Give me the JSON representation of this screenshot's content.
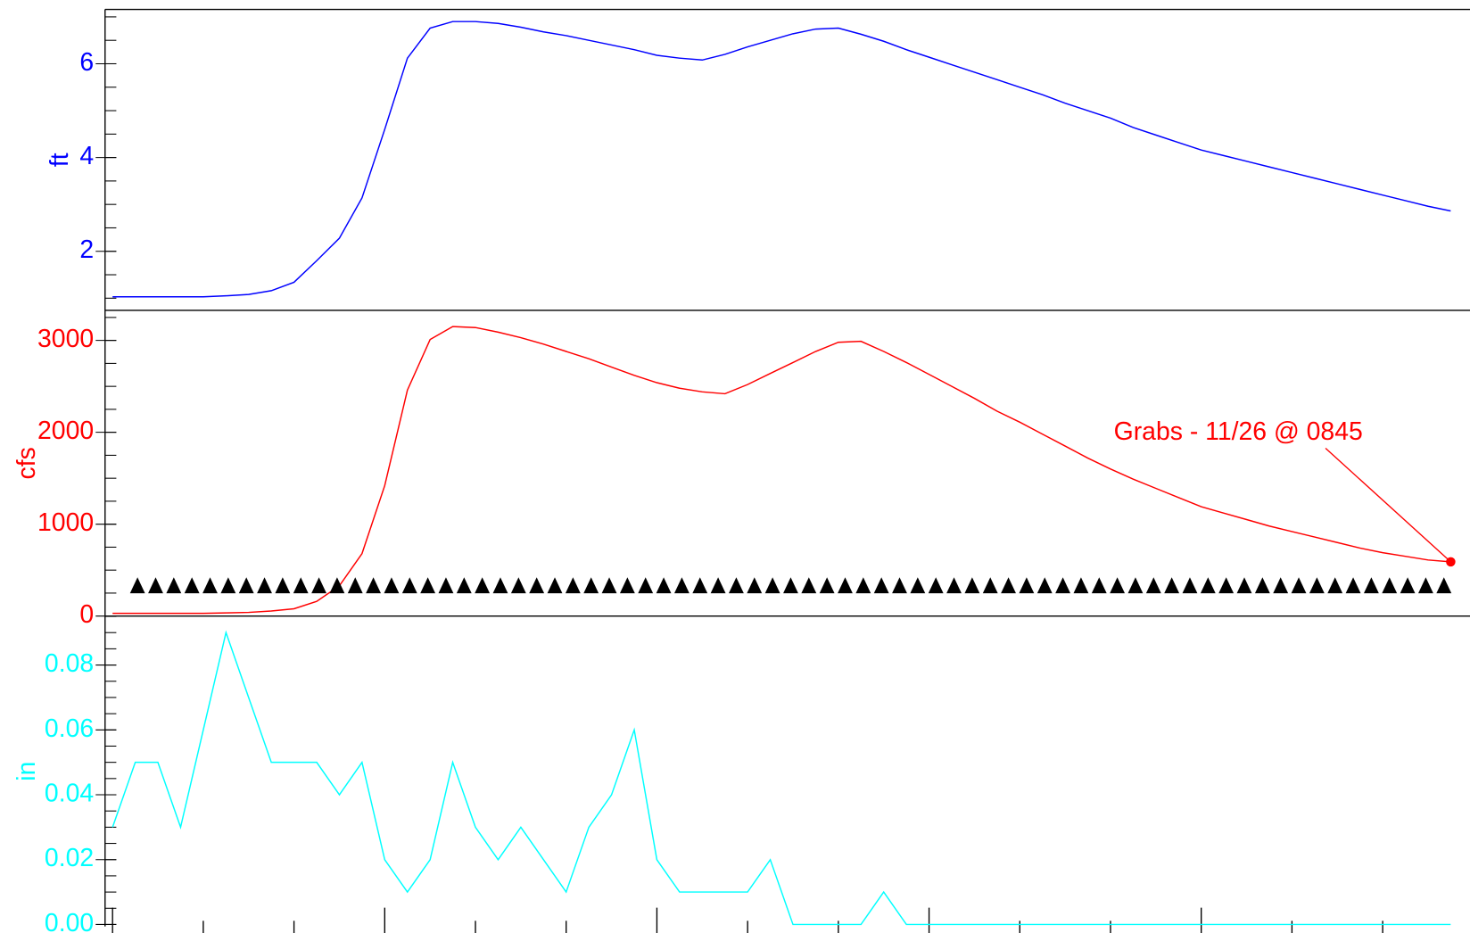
{
  "chart_data": [
    {
      "type": "line",
      "ylabel": "ft",
      "color": "#0000ff",
      "xlim": [
        -0.66,
        119.7
      ],
      "ylim": [
        0.74,
        7.16
      ],
      "yticks": [
        2,
        4,
        6
      ],
      "minor_yticks": [
        1,
        1.5,
        2,
        2.5,
        3,
        3.5,
        4,
        4.5,
        5,
        5.5,
        6,
        6.5,
        7
      ],
      "x": [
        0,
        2,
        4,
        6,
        8,
        10,
        12,
        14,
        16,
        18,
        20,
        22,
        24,
        26,
        28,
        30,
        32,
        34,
        36,
        38,
        40,
        42,
        44,
        46,
        48,
        50,
        52,
        54,
        56,
        58,
        60,
        62,
        64,
        66,
        68,
        70,
        72,
        74,
        76,
        78,
        80,
        82,
        84,
        86,
        88,
        90,
        92,
        94,
        96,
        98,
        100,
        102,
        104,
        106,
        108,
        110,
        112,
        114,
        116,
        118
      ],
      "values": [
        1.03,
        1.03,
        1.03,
        1.03,
        1.03,
        1.05,
        1.08,
        1.16,
        1.34,
        1.8,
        2.28,
        3.14,
        4.6,
        6.12,
        6.76,
        6.9,
        6.9,
        6.86,
        6.78,
        6.68,
        6.6,
        6.5,
        6.4,
        6.3,
        6.18,
        6.12,
        6.08,
        6.2,
        6.36,
        6.5,
        6.64,
        6.74,
        6.76,
        6.63,
        6.48,
        6.3,
        6.14,
        5.98,
        5.82,
        5.66,
        5.5,
        5.34,
        5.16,
        5.0,
        4.84,
        4.64,
        4.48,
        4.32,
        4.16,
        4.04,
        3.92,
        3.8,
        3.68,
        3.56,
        3.44,
        3.32,
        3.2,
        3.08,
        2.96,
        2.86
      ]
    },
    {
      "type": "line",
      "ylabel": "cfs",
      "color": "#ff0000",
      "xlim": [
        -0.66,
        119.7
      ],
      "ylim": [
        0,
        3327
      ],
      "yticks": [
        0,
        1000,
        2000,
        3000
      ],
      "minor_yticks": [
        0,
        250,
        500,
        750,
        1000,
        1250,
        1500,
        1750,
        2000,
        2250,
        2500,
        2750,
        3000,
        3250
      ],
      "x": [
        0,
        2,
        4,
        6,
        8,
        10,
        12,
        14,
        16,
        18,
        20,
        22,
        24,
        26,
        28,
        30,
        32,
        34,
        36,
        38,
        40,
        42,
        44,
        46,
        48,
        50,
        52,
        54,
        56,
        58,
        60,
        62,
        64,
        66,
        68,
        70,
        72,
        74,
        76,
        78,
        80,
        82,
        84,
        86,
        88,
        90,
        92,
        94,
        96,
        98,
        100,
        102,
        104,
        106,
        108,
        110,
        112,
        114,
        116,
        118
      ],
      "values": [
        30,
        30,
        30,
        30,
        30,
        35,
        40,
        55,
        80,
        160,
        330,
        680,
        1420,
        2460,
        3010,
        3150,
        3140,
        3090,
        3030,
        2960,
        2880,
        2800,
        2710,
        2620,
        2540,
        2480,
        2440,
        2420,
        2520,
        2640,
        2760,
        2880,
        2980,
        2990,
        2880,
        2760,
        2630,
        2500,
        2370,
        2230,
        2110,
        1980,
        1850,
        1720,
        1600,
        1490,
        1390,
        1290,
        1190,
        1120,
        1050,
        980,
        920,
        860,
        800,
        740,
        690,
        650,
        610,
        590
      ],
      "annotation": "Grabs - 11/26 @ 0845",
      "markers": {
        "color": "#000000",
        "x": [
          2.2,
          3.8,
          5.4,
          7,
          8.6,
          10.2,
          11.8,
          13.4,
          15,
          16.6,
          18.2,
          19.8,
          21.4,
          23,
          24.6,
          26.2,
          27.8,
          29.4,
          31,
          32.6,
          34.2,
          35.8,
          37.4,
          39,
          40.6,
          42.2,
          43.8,
          45.4,
          47,
          48.6,
          50.2,
          51.8,
          53.4,
          55,
          56.6,
          58.2,
          59.8,
          61.4,
          63,
          64.6,
          66.2,
          67.8,
          69.4,
          71,
          72.6,
          74.2,
          75.8,
          77.4,
          79,
          80.6,
          82.2,
          83.8,
          85.4,
          87,
          88.6,
          90.2,
          91.8,
          93.4,
          95,
          96.6,
          98.2,
          99.8,
          101.4,
          103,
          104.6,
          106.2,
          107.8,
          109.4,
          111,
          112.6,
          114.2,
          115.8,
          117.4
        ],
        "values": [
          330,
          330,
          330,
          330,
          330,
          330,
          330,
          330,
          330,
          330,
          330,
          330,
          330,
          330,
          330,
          330,
          330,
          330,
          330,
          330,
          330,
          330,
          330,
          330,
          330,
          330,
          330,
          330,
          330,
          330,
          330,
          330,
          330,
          330,
          330,
          330,
          330,
          330,
          330,
          330,
          330,
          330,
          330,
          330,
          330,
          330,
          330,
          330,
          330,
          330,
          330,
          330,
          330,
          330,
          330,
          330,
          330,
          330,
          330,
          330,
          330,
          330,
          330,
          330,
          330,
          330,
          330,
          330,
          330,
          330,
          330,
          330,
          330
        ]
      }
    },
    {
      "type": "line",
      "ylabel": "in",
      "color": "#00ffff",
      "xlim": [
        -0.66,
        119.7
      ],
      "ylim": [
        -0.0006,
        0.0951
      ],
      "yticks": [
        {
          "value": 0,
          "label": "0.00"
        },
        0.02,
        0.04,
        0.06,
        0.08
      ],
      "minor_yticks": [
        0,
        0.005,
        0.01,
        0.015,
        0.02,
        0.025,
        0.03,
        0.035,
        0.04,
        0.045,
        0.05,
        0.055,
        0.06,
        0.065,
        0.07,
        0.075,
        0.08,
        0.085,
        0.09,
        0.095
      ],
      "xticks": [
        0,
        8,
        16,
        24,
        32,
        40,
        48,
        56,
        64,
        72,
        80,
        88,
        96,
        104,
        112
      ],
      "x": [
        0,
        2,
        4,
        6,
        8,
        10,
        12,
        14,
        16,
        18,
        20,
        22,
        24,
        26,
        28,
        30,
        32,
        34,
        36,
        38,
        40,
        42,
        44,
        46,
        48,
        50,
        52,
        54,
        56,
        58,
        60,
        62,
        64,
        66,
        68,
        70,
        72,
        74,
        76,
        78,
        80,
        82,
        84,
        86,
        88,
        90,
        92,
        94,
        96,
        98,
        100,
        102,
        104,
        106,
        108,
        110,
        112,
        114,
        116,
        118
      ],
      "values": [
        0.03,
        0.05,
        0.05,
        0.03,
        0.06,
        0.09,
        0.07,
        0.05,
        0.05,
        0.05,
        0.04,
        0.05,
        0.02,
        0.01,
        0.02,
        0.05,
        0.03,
        0.02,
        0.03,
        0.02,
        0.01,
        0.03,
        0.04,
        0.06,
        0.02,
        0.01,
        0.01,
        0.01,
        0.01,
        0.02,
        0,
        0,
        0,
        0,
        0.01,
        0,
        0,
        0,
        0,
        0,
        0,
        0,
        0,
        0,
        0,
        0,
        0,
        0,
        0,
        0,
        0,
        0,
        0,
        0,
        0,
        0,
        0,
        0,
        0,
        0
      ]
    }
  ]
}
